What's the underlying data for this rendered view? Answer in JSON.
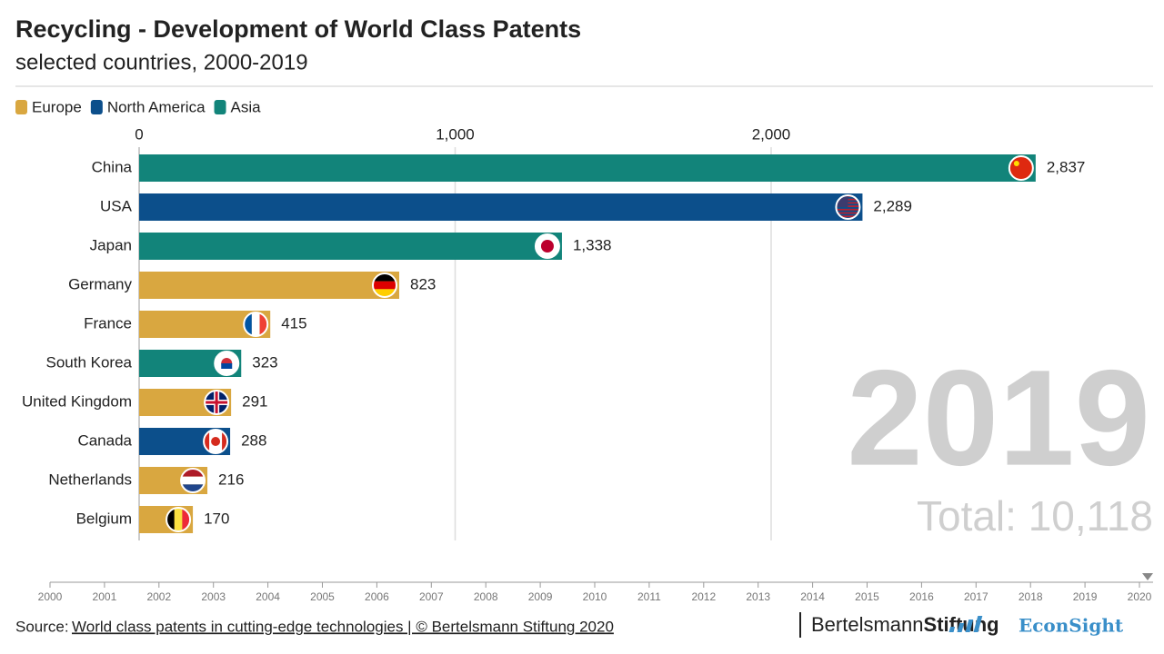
{
  "chart_data": {
    "type": "bar",
    "orientation": "horizontal",
    "title": "Recycling - Development of World Class Patents",
    "subtitle": "selected countries, 2000-2019",
    "categories": [
      "China",
      "USA",
      "Japan",
      "Germany",
      "France",
      "South Korea",
      "United Kingdom",
      "Canada",
      "Netherlands",
      "Belgium"
    ],
    "series": [
      {
        "name": "Europe",
        "color": "#d9a740",
        "values": [
          null,
          null,
          null,
          823,
          415,
          null,
          291,
          null,
          216,
          170
        ],
        "value_labels": [
          null,
          null,
          null,
          "823",
          "415",
          null,
          "291",
          null,
          "216",
          "170"
        ]
      },
      {
        "name": "North America",
        "color": "#0c4f8b",
        "values": [
          null,
          2289,
          null,
          null,
          null,
          null,
          null,
          288,
          null,
          null
        ],
        "value_labels": [
          null,
          "2,289",
          null,
          null,
          null,
          null,
          null,
          "288",
          null,
          null
        ]
      },
      {
        "name": "Asia",
        "color": "#12847a",
        "values": [
          2837,
          null,
          1338,
          null,
          null,
          323,
          null,
          null,
          null,
          null
        ],
        "value_labels": [
          "2,837",
          null,
          "1,338",
          null,
          null,
          "323",
          null,
          null,
          null,
          null
        ]
      }
    ],
    "xlim": [
      0,
      3000
    ],
    "xticks": [
      0,
      {
        "value": 1000,
        "label": "1,000"
      },
      {
        "value": 2000,
        "label": "2,000"
      }
    ],
    "grid": true,
    "year_label": "2019",
    "total_label": "Total: 10,118",
    "timeline": {
      "ticks": [
        2000,
        2001,
        2002,
        2003,
        2004,
        2005,
        2006,
        2007,
        2008,
        2009,
        2010,
        2011,
        2012,
        2013,
        2014,
        2015,
        2016,
        2017,
        2018,
        2019,
        2020
      ],
      "position": 2020
    },
    "source_prefix": "Source:",
    "source_link": "World class patents in cutting-edge technologies | © Bertelsmann Stiftung 2020",
    "logo_bertelsmann": "Bertelsmann",
    "logo_stiftung": "Stiftung",
    "logo_econsight": "EconSight"
  }
}
